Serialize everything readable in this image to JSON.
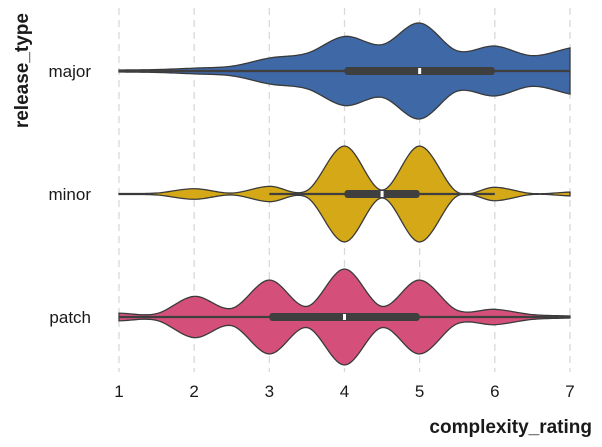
{
  "chart_data": {
    "type": "violin",
    "title": "",
    "xlabel": "complexity_rating",
    "ylabel": "release_type",
    "xlim": [
      1,
      7
    ],
    "xticks": [
      1,
      2,
      3,
      4,
      5,
      6,
      7
    ],
    "grid": "vertical dashed",
    "orientation": "horizontal",
    "categories": [
      "major",
      "minor",
      "patch"
    ],
    "series": [
      {
        "category": "major",
        "color": "#3e68a6",
        "median": 5,
        "q1": 4,
        "q3": 6,
        "whisker_low": 1,
        "whisker_high": 7,
        "density_shape": [
          [
            1,
            0.02
          ],
          [
            1.5,
            0.03
          ],
          [
            2,
            0.06
          ],
          [
            2.5,
            0.1
          ],
          [
            3,
            0.27
          ],
          [
            3.5,
            0.37
          ],
          [
            4,
            0.72
          ],
          [
            4.5,
            0.55
          ],
          [
            5,
            1.0
          ],
          [
            5.5,
            0.42
          ],
          [
            6,
            0.52
          ],
          [
            6.5,
            0.32
          ],
          [
            7,
            0.48
          ]
        ]
      },
      {
        "category": "minor",
        "color": "#d4a816",
        "median": 4.5,
        "q1": 4,
        "q3": 5,
        "whisker_low": 3,
        "whisker_high": 6,
        "density_shape": [
          [
            1,
            0.01
          ],
          [
            1.5,
            0.02
          ],
          [
            2,
            0.11
          ],
          [
            2.5,
            0.02
          ],
          [
            3,
            0.16
          ],
          [
            3.5,
            0.07
          ],
          [
            4,
            1.0
          ],
          [
            4.5,
            0.08
          ],
          [
            5,
            1.0
          ],
          [
            5.5,
            0.04
          ],
          [
            6,
            0.14
          ],
          [
            6.5,
            0.01
          ],
          [
            7,
            0.04
          ]
        ]
      },
      {
        "category": "patch",
        "color": "#d4507a",
        "median": 4,
        "q1": 3,
        "q3": 5,
        "whisker_low": 1,
        "whisker_high": 7,
        "density_shape": [
          [
            1,
            0.08
          ],
          [
            1.5,
            0.07
          ],
          [
            2,
            0.43
          ],
          [
            2.5,
            0.18
          ],
          [
            3,
            0.77
          ],
          [
            3.5,
            0.22
          ],
          [
            4,
            1.0
          ],
          [
            4.5,
            0.22
          ],
          [
            5,
            0.77
          ],
          [
            5.5,
            0.14
          ],
          [
            6,
            0.16
          ],
          [
            6.5,
            0.05
          ],
          [
            7,
            0.02
          ]
        ]
      }
    ]
  }
}
